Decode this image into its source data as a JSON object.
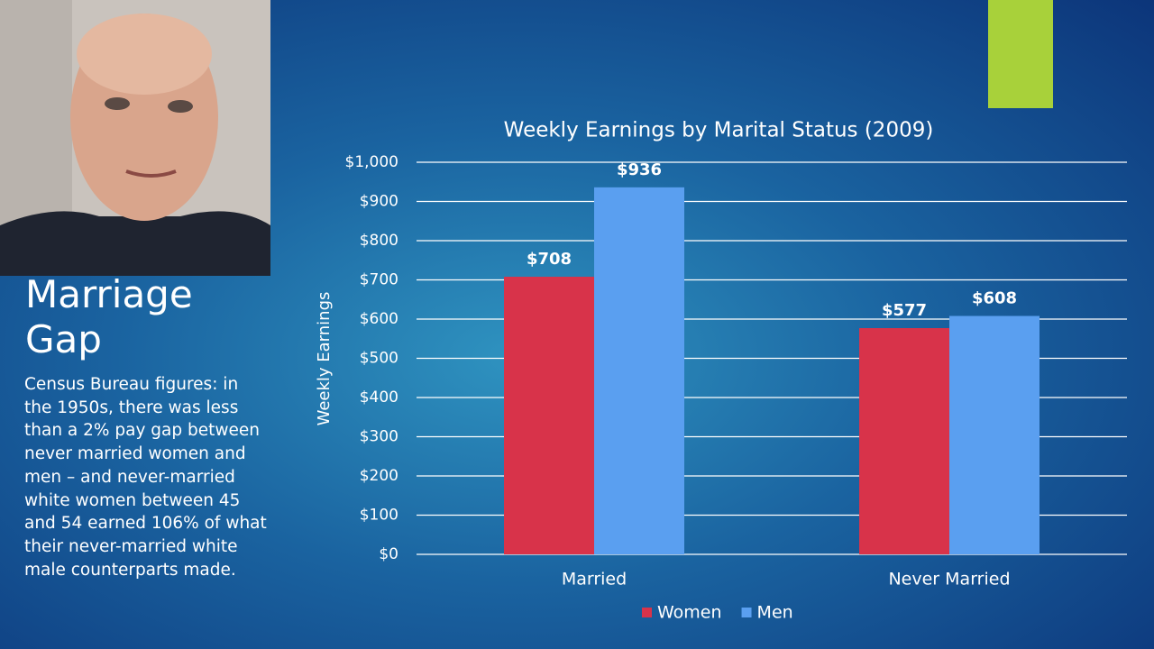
{
  "slide": {
    "title": "Marriage Gap",
    "body": "Census Bureau figures: in the 1950s, there was less than a 2% pay gap between never married women and men – and never-married white women between 45 and 54 earned 106% of what their never-married white male counterparts made."
  },
  "chart_data": {
    "type": "bar",
    "title": "Weekly Earnings by Marital Status (2009)",
    "y_label": "Weekly Earnings",
    "categories": [
      "Married",
      "Never Married"
    ],
    "series": [
      {
        "name": "Women",
        "color": "#d8334a",
        "values": [
          708,
          577
        ],
        "value_labels": [
          "$708",
          "$577"
        ]
      },
      {
        "name": "Men",
        "color": "#5a9ff0",
        "values": [
          936,
          608
        ],
        "value_labels": [
          "$936",
          "$608"
        ]
      }
    ],
    "ylim": [
      0,
      1000
    ],
    "yticks": [
      {
        "value": 0,
        "label": "$0"
      },
      {
        "value": 100,
        "label": "$100"
      },
      {
        "value": 200,
        "label": "$200"
      },
      {
        "value": 300,
        "label": "$300"
      },
      {
        "value": 400,
        "label": "$400"
      },
      {
        "value": 500,
        "label": "$500"
      },
      {
        "value": 600,
        "label": "$600"
      },
      {
        "value": 700,
        "label": "$700"
      },
      {
        "value": 800,
        "label": "$800"
      },
      {
        "value": 900,
        "label": "$900"
      },
      {
        "value": 1000,
        "label": "$1,000"
      }
    ],
    "grid": true,
    "legend": "bottom"
  }
}
